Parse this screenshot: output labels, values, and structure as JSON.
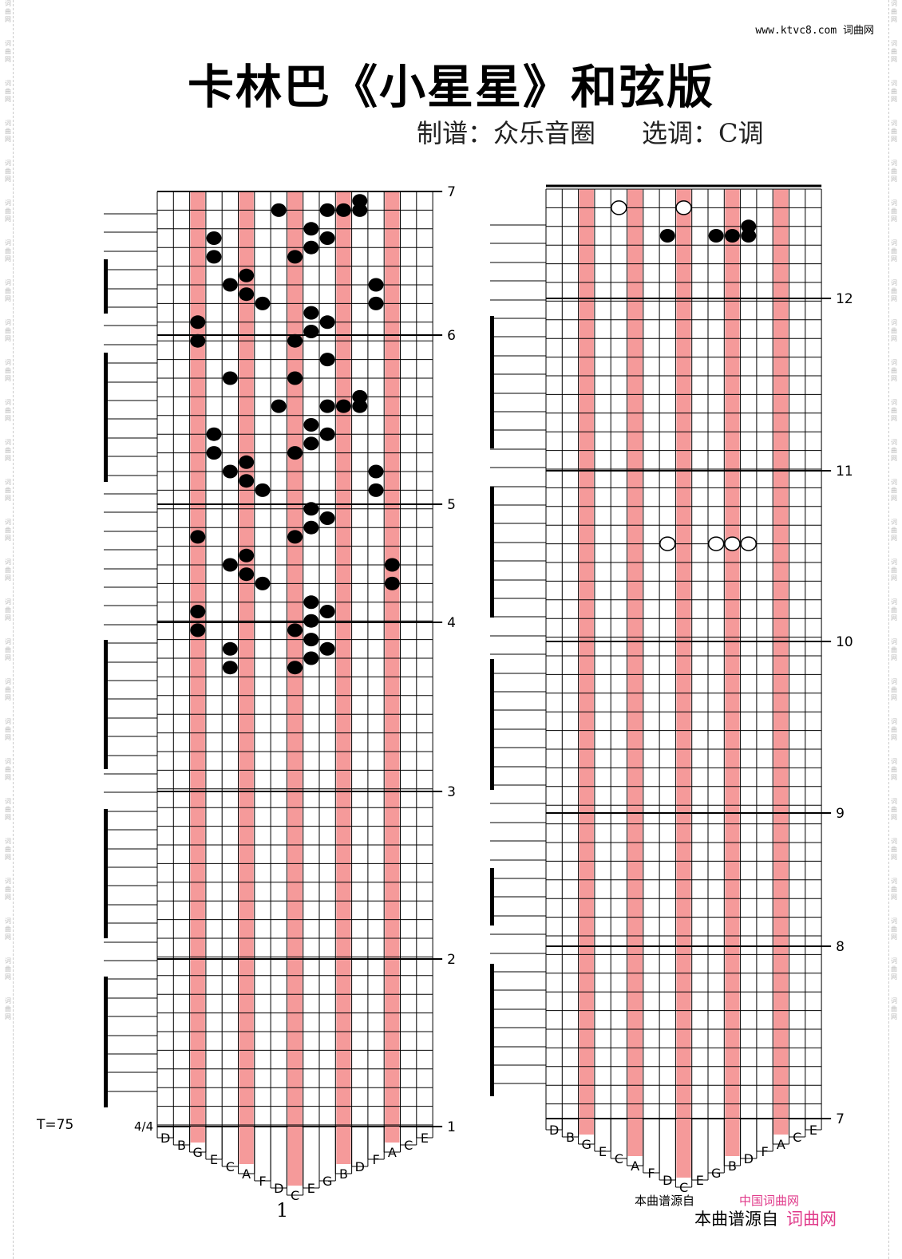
{
  "header": {
    "title": "卡林巴《小星星》和弦版",
    "arranger_label": "制谱：众乐音圈",
    "key_label": "选调：C调",
    "site": "www.ktvc8.com 词曲网"
  },
  "side_watermark": [
    "词",
    "曲",
    "网"
  ],
  "tempo": "T=75",
  "time_signature": "4/4",
  "page_number": "1",
  "footer": {
    "source_label": "本曲谱源自",
    "source_brand": "词曲网",
    "source_label_top": "本曲谱源自",
    "source_brand_top": "中国词曲网"
  },
  "colors": {
    "highlight": "#f59a9a",
    "line": "#000000",
    "brand": "#e03a8a"
  },
  "tine_labels": [
    "D",
    "B",
    "G",
    "E",
    "C",
    "A",
    "F",
    "D",
    "C",
    "E",
    "G",
    "B",
    "D",
    "F",
    "A",
    "C",
    "E"
  ],
  "highlighted_tines": [
    2,
    5,
    8,
    11,
    14
  ],
  "left_panel": {
    "measure_numbers": [
      "7",
      "6",
      "5",
      "4",
      "3",
      "2",
      "1"
    ],
    "notes": [
      {
        "row": 0.5,
        "tine": 12
      },
      {
        "row": 1,
        "tine": 7
      },
      {
        "row": 1,
        "tine": 10
      },
      {
        "row": 1,
        "tine": 11
      },
      {
        "row": 1,
        "tine": 12
      },
      {
        "row": 2,
        "tine": 9
      },
      {
        "row": 2.5,
        "tine": 3
      },
      {
        "row": 2.5,
        "tine": 10
      },
      {
        "row": 3,
        "tine": 9
      },
      {
        "row": 3.5,
        "tine": 3
      },
      {
        "row": 3.5,
        "tine": 8
      },
      {
        "row": 4.5,
        "tine": 5
      },
      {
        "row": 5,
        "tine": 4
      },
      {
        "row": 5,
        "tine": 13
      },
      {
        "row": 5.5,
        "tine": 5
      },
      {
        "row": 6,
        "tine": 6
      },
      {
        "row": 6,
        "tine": 13
      },
      {
        "row": 6.5,
        "tine": 9
      },
      {
        "row": 7,
        "tine": 2
      },
      {
        "row": 7,
        "tine": 10
      },
      {
        "row": 7.5,
        "tine": 9
      },
      {
        "row": 8,
        "tine": 2
      },
      {
        "row": 8,
        "tine": 8
      },
      {
        "row": 9,
        "tine": 10
      },
      {
        "row": 10,
        "tine": 4
      },
      {
        "row": 10,
        "tine": 8
      },
      {
        "row": 11,
        "tine": 12
      },
      {
        "row": 11.5,
        "tine": 7
      },
      {
        "row": 11.5,
        "tine": 10
      },
      {
        "row": 11.5,
        "tine": 11
      },
      {
        "row": 11.5,
        "tine": 12
      },
      {
        "row": 12.5,
        "tine": 9
      },
      {
        "row": 13,
        "tine": 3
      },
      {
        "row": 13,
        "tine": 10
      },
      {
        "row": 13.5,
        "tine": 9
      },
      {
        "row": 14,
        "tine": 3
      },
      {
        "row": 14,
        "tine": 8
      },
      {
        "row": 14.5,
        "tine": 5
      },
      {
        "row": 15,
        "tine": 4
      },
      {
        "row": 15,
        "tine": 13
      },
      {
        "row": 15.5,
        "tine": 5
      },
      {
        "row": 16,
        "tine": 6
      },
      {
        "row": 16,
        "tine": 13
      },
      {
        "row": 17,
        "tine": 9
      },
      {
        "row": 17.5,
        "tine": 10
      },
      {
        "row": 18,
        "tine": 9
      },
      {
        "row": 18.5,
        "tine": 2
      },
      {
        "row": 18.5,
        "tine": 8
      },
      {
        "row": 19.5,
        "tine": 5
      },
      {
        "row": 20,
        "tine": 4
      },
      {
        "row": 20,
        "tine": 14
      },
      {
        "row": 20.5,
        "tine": 5
      },
      {
        "row": 21,
        "tine": 6
      },
      {
        "row": 21,
        "tine": 14
      },
      {
        "row": 22,
        "tine": 9
      },
      {
        "row": 22.5,
        "tine": 2
      },
      {
        "row": 22.5,
        "tine": 10
      },
      {
        "row": 23,
        "tine": 9
      },
      {
        "row": 23.5,
        "tine": 2
      },
      {
        "row": 23.5,
        "tine": 8
      },
      {
        "row": 24,
        "tine": 9
      },
      {
        "row": 24.5,
        "tine": 4
      },
      {
        "row": 24.5,
        "tine": 10
      },
      {
        "row": 25,
        "tine": 9
      },
      {
        "row": 25.5,
        "tine": 4
      },
      {
        "row": 25.5,
        "tine": 8
      }
    ]
  },
  "right_panel": {
    "measure_numbers": [
      "12",
      "11",
      "10",
      "9",
      "8",
      "7"
    ],
    "open_notes": [
      {
        "row": 1,
        "tine": 4
      },
      {
        "row": 1,
        "tine": 8
      },
      {
        "row": 19,
        "tine": 7
      },
      {
        "row": 19,
        "tine": 10
      },
      {
        "row": 19,
        "tine": 11
      },
      {
        "row": 19,
        "tine": 12
      }
    ],
    "notes": [
      {
        "row": 2,
        "tine": 12
      },
      {
        "row": 2.5,
        "tine": 7
      },
      {
        "row": 2.5,
        "tine": 10
      },
      {
        "row": 2.5,
        "tine": 11
      },
      {
        "row": 2.5,
        "tine": 12
      }
    ]
  }
}
